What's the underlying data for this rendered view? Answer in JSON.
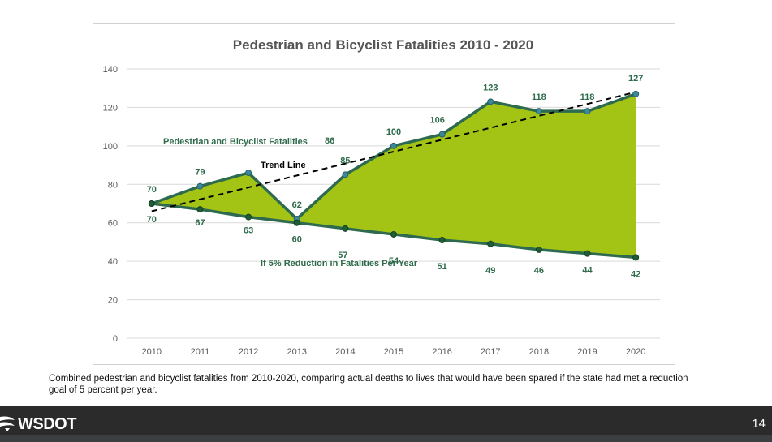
{
  "colors": {
    "area_fill": "#a3c414",
    "line": "#2d6a4f",
    "marker_actual": "#3b8a9a",
    "marker_target": "#1f5e34",
    "label_text": "#2f6b4b",
    "trend": "#000000",
    "footer": "#2b2b2b"
  },
  "chart_data": {
    "type": "area",
    "title": "Pedestrian and Bicyclist Fatalities 2010 - 2020",
    "xlabel": "",
    "ylabel": "",
    "x": [
      "2010",
      "2011",
      "2012",
      "2013",
      "2014",
      "2015",
      "2016",
      "2017",
      "2018",
      "2019",
      "2020"
    ],
    "ylim": [
      0,
      140
    ],
    "yticks": [
      "0",
      "20",
      "40",
      "60",
      "80",
      "100",
      "120",
      "140"
    ],
    "grid": true,
    "series": [
      {
        "name": "Pedestrian and Bicyclist Fatalities",
        "values": [
          70,
          79,
          86,
          62,
          85,
          100,
          106,
          123,
          118,
          118,
          127
        ],
        "labels": [
          "70",
          "79",
          "86",
          "62",
          "85",
          "100",
          "106",
          "123",
          "118",
          "118",
          "127"
        ]
      },
      {
        "name": "If 5% Reduction in Fatalities Per Year",
        "values": [
          70,
          67,
          63,
          60,
          57,
          54,
          51,
          49,
          46,
          44,
          42
        ],
        "labels": [
          "70",
          "67",
          "63",
          "60",
          "57",
          "54",
          "51",
          "49",
          "46",
          "44",
          "42"
        ]
      }
    ],
    "trend": {
      "name": "Trend Line",
      "start": 66,
      "end": 128
    }
  },
  "caption": "Combined pedestrian and bicyclist fatalities from 2010-2020, comparing actual deaths to lives that would have been spared if the state had met a reduction goal of 5 percent per year.",
  "footer": {
    "logo_text": "WSDOT",
    "logo_icon": "wsdot-swoosh-icon",
    "page_number": "14"
  }
}
